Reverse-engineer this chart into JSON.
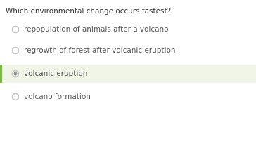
{
  "question": "Which environmental change occurs fastest?",
  "options": [
    "repopulation of animals after a volcano",
    "regrowth of forest after volcanic eruption",
    "volcanic eruption",
    "volcano formation"
  ],
  "selected_index": 2,
  "background_color": "#ffffff",
  "selected_bg_color": "#f0f5e8",
  "selected_border_color": "#7ab648",
  "question_color": "#333333",
  "option_color": "#555555",
  "radio_unselected_color": "#c8c8c8",
  "radio_selected_color": "#999999",
  "question_fontsize": 7.5,
  "option_fontsize": 7.5
}
